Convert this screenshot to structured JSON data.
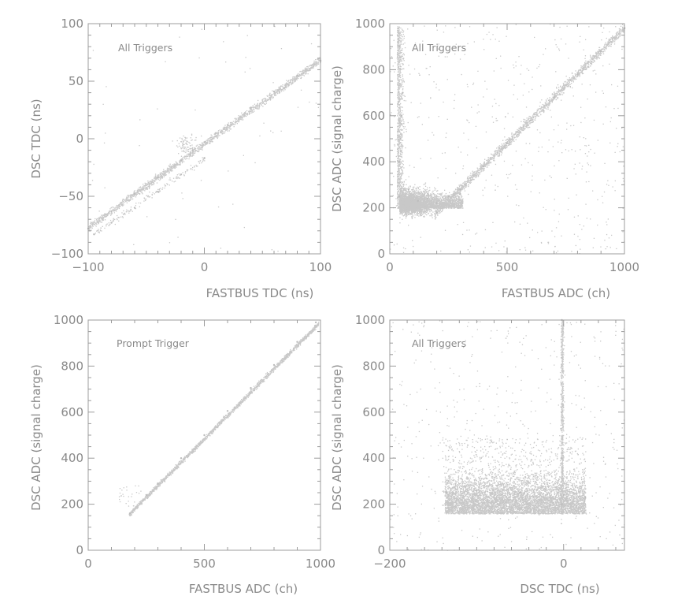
{
  "chart_data": [
    {
      "type": "scatter",
      "annotation": "All Triggers",
      "xlabel": "FASTBUS TDC (ns)",
      "ylabel": "DSC TDC (ns)",
      "xlim": [
        -100,
        100
      ],
      "ylim": [
        -100,
        100
      ],
      "xticks": [
        "−100",
        "0",
        "100"
      ],
      "yticks": [
        "−100",
        "−50",
        "0",
        "50",
        "100"
      ],
      "point_color": "#c8c8c8",
      "series": [
        {
          "description": "dense diagonal band, DSC TDC ≈ FASTBUS TDC",
          "x": [
            -100,
            -80,
            -60,
            -40,
            -20,
            -10,
            0,
            10,
            20,
            40,
            60,
            80,
            100
          ],
          "y": [
            -78,
            -63,
            -48,
            -34,
            -19,
            -10,
            -3,
            5,
            12,
            27,
            41,
            55,
            68
          ]
        },
        {
          "description": "sparse secondary band offset below",
          "x": [
            -95,
            -80,
            -60,
            -40,
            -20,
            0
          ],
          "y": [
            -83,
            -73,
            -60,
            -46,
            -31,
            -17
          ]
        }
      ]
    },
    {
      "type": "scatter",
      "annotation": "All Triggers",
      "xlabel": "FASTBUS ADC (ch)",
      "ylabel": "DSC ADC (signal charge)",
      "xlim": [
        0,
        1000
      ],
      "ylim": [
        0,
        1000
      ],
      "xticks": [
        "0",
        "500",
        "1000"
      ],
      "yticks": [
        "0",
        "200",
        "400",
        "600",
        "800",
        "1000"
      ],
      "point_color": "#c8c8c8",
      "series": [
        {
          "description": "diagonal band",
          "x": [
            200,
            300,
            400,
            500,
            600,
            700,
            800,
            900,
            1000
          ],
          "y": [
            180,
            280,
            380,
            480,
            580,
            680,
            780,
            880,
            980
          ]
        },
        {
          "description": "low-ADC cluster",
          "x": [
            40,
            80,
            120,
            160,
            200,
            250,
            300
          ],
          "y": [
            250,
            280,
            230,
            240,
            220,
            250,
            260
          ]
        },
        {
          "description": "vertical spray near FASTBUS ADC ≈ 40",
          "x": [
            40,
            45,
            50,
            55,
            40
          ],
          "y": [
            400,
            500,
            600,
            700,
            900
          ]
        }
      ]
    },
    {
      "type": "scatter",
      "annotation": "Prompt Trigger",
      "xlabel": "FASTBUS ADC (ch)",
      "ylabel": "DSC ADC (signal charge)",
      "xlim": [
        0,
        1000
      ],
      "ylim": [
        0,
        1000
      ],
      "xticks": [
        "0",
        "500",
        "1000"
      ],
      "yticks": [
        "0",
        "200",
        "400",
        "600",
        "800",
        "1000"
      ],
      "point_color": "#c8c8c8",
      "series": [
        {
          "description": "narrow diagonal band",
          "x": [
            180,
            250,
            300,
            400,
            500,
            600,
            700,
            800,
            900,
            980
          ],
          "y": [
            160,
            240,
            290,
            400,
            500,
            605,
            705,
            805,
            905,
            990
          ]
        }
      ]
    },
    {
      "type": "scatter",
      "annotation": "All Triggers",
      "xlabel": "DSC TDC (ns)",
      "ylabel": "DSC ADC (signal charge)",
      "xlim": [
        -200,
        70
      ],
      "ylim": [
        0,
        1000
      ],
      "xticks": [
        "−200",
        "0"
      ],
      "yticks": [
        "0",
        "200",
        "400",
        "600",
        "800",
        "1000"
      ],
      "point_color": "#c8c8c8",
      "series": [
        {
          "description": "dense block",
          "x": [
            -135,
            -100,
            -50,
            0,
            25
          ],
          "y": [
            250,
            260,
            250,
            240,
            230
          ]
        },
        {
          "description": "vertical line near DSC TDC ≈ 0",
          "x": [
            -2,
            -2,
            -2,
            -2,
            -2
          ],
          "y": [
            200,
            400,
            600,
            800,
            1000
          ]
        }
      ]
    }
  ]
}
